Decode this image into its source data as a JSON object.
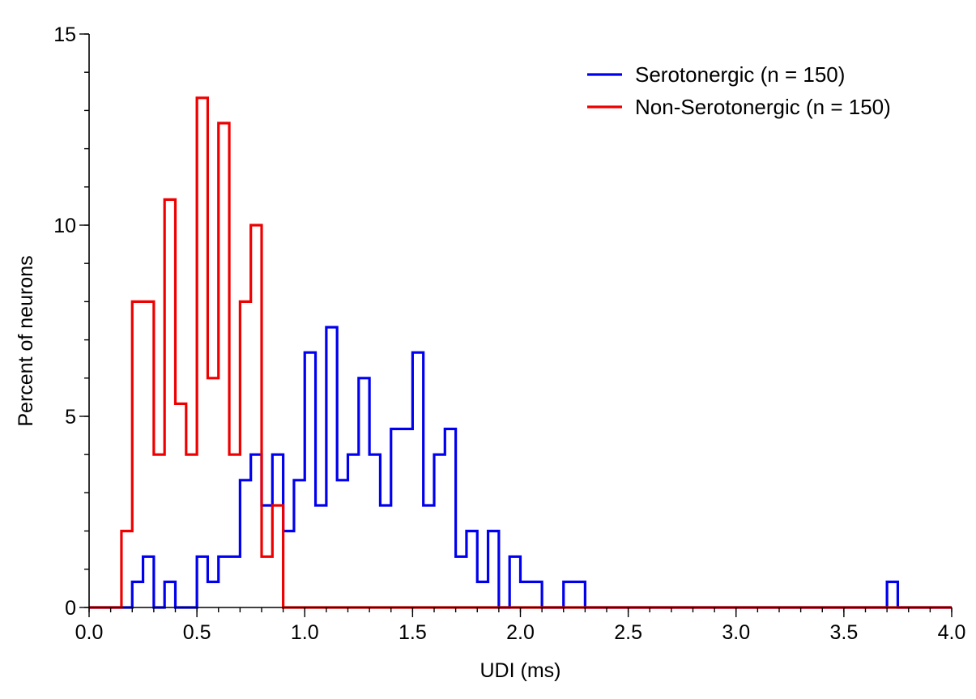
{
  "chart_data": {
    "type": "histogram",
    "xlabel": "UDI (ms)",
    "ylabel": "Percent of neurons",
    "xlim": [
      0,
      4
    ],
    "ylim": [
      0,
      15
    ],
    "x_ticks": [
      0.0,
      0.5,
      1.0,
      1.5,
      2.0,
      2.5,
      3.0,
      3.5,
      4.0
    ],
    "x_tick_labels": [
      "0.0",
      "0.5",
      "1.0",
      "1.5",
      "2.0",
      "2.5",
      "3.0",
      "3.5",
      "4.0"
    ],
    "y_ticks": [
      0,
      5,
      10,
      15
    ],
    "y_tick_labels": [
      "0",
      "5",
      "10",
      "15"
    ],
    "bin_width": 0.05,
    "legend_position": "top-right",
    "series": [
      {
        "name": "Serotonergic (n = 150)",
        "color": "#0000ee",
        "bin_starts": [
          0.2,
          0.25,
          0.3,
          0.35,
          0.4,
          0.45,
          0.5,
          0.55,
          0.6,
          0.65,
          0.7,
          0.75,
          0.8,
          0.85,
          0.9,
          0.95,
          1.0,
          1.05,
          1.1,
          1.15,
          1.2,
          1.25,
          1.3,
          1.35,
          1.4,
          1.45,
          1.5,
          1.55,
          1.6,
          1.65,
          1.7,
          1.75,
          1.8,
          1.85,
          1.9,
          1.95,
          2.0,
          2.05,
          2.1,
          2.15,
          2.2,
          2.25,
          3.7
        ],
        "values": [
          0.67,
          1.33,
          0,
          0.67,
          0,
          0,
          1.33,
          0.67,
          1.33,
          1.33,
          3.33,
          4.0,
          2.67,
          4.0,
          2.0,
          3.33,
          6.67,
          2.67,
          7.33,
          3.33,
          4.0,
          6.0,
          4.0,
          2.67,
          4.67,
          4.67,
          6.67,
          2.67,
          4.0,
          4.67,
          1.33,
          2.0,
          0.67,
          2.0,
          0,
          1.33,
          0.67,
          0.67,
          0,
          0,
          0.67,
          0.67,
          0.67
        ]
      },
      {
        "name": "Non-Serotonergic (n = 150)",
        "color": "#ee0000",
        "bin_starts": [
          0.15,
          0.2,
          0.25,
          0.3,
          0.35,
          0.4,
          0.45,
          0.5,
          0.55,
          0.6,
          0.65,
          0.7,
          0.75,
          0.8,
          0.85
        ],
        "values": [
          2.0,
          8.0,
          8.0,
          4.0,
          10.67,
          5.33,
          4.0,
          13.33,
          6.0,
          12.67,
          4.0,
          8.0,
          10.0,
          1.33,
          2.67
        ]
      }
    ]
  }
}
